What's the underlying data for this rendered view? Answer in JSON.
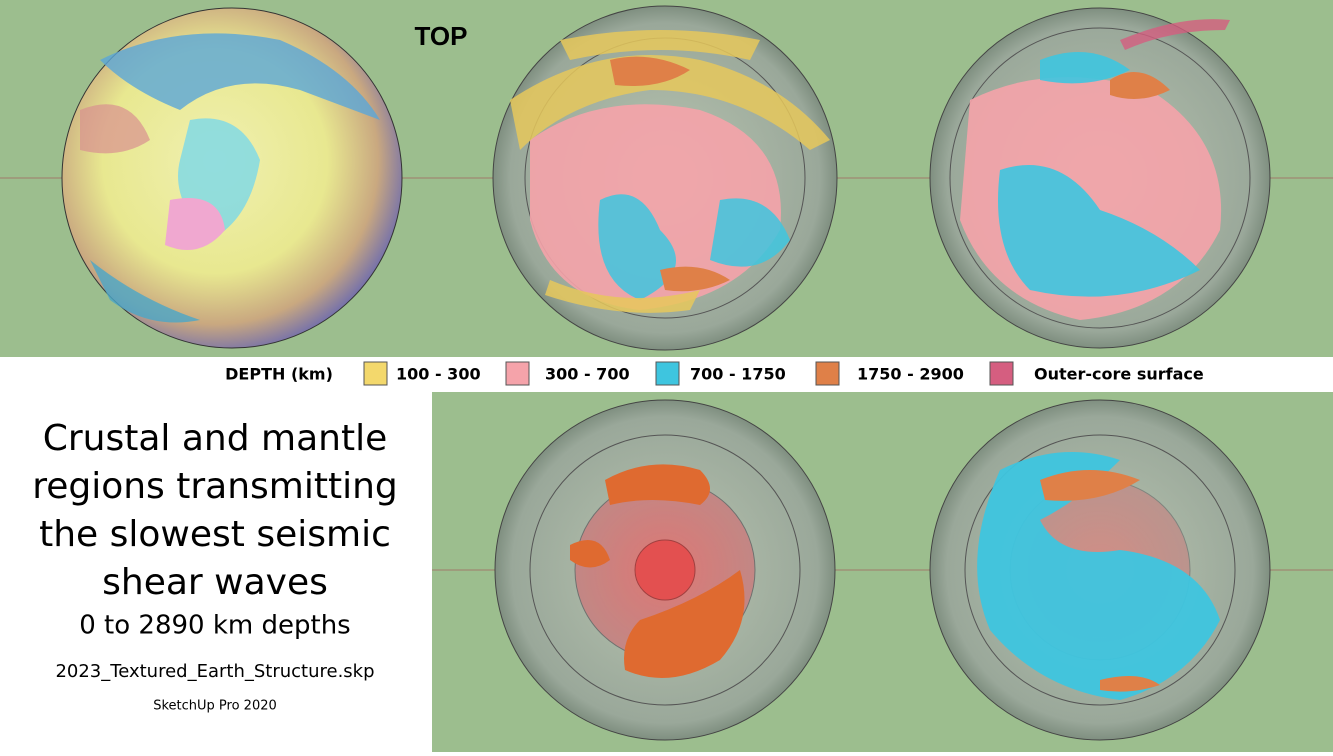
{
  "header": {
    "label": "TOP"
  },
  "legend": {
    "title": "DEPTH (km)",
    "items": [
      {
        "label": "100 - 300",
        "color": "#f3d86c"
      },
      {
        "label": "300 - 700",
        "color": "#f5a3aa"
      },
      {
        "label": "700 - 1750",
        "color": "#3ec5df"
      },
      {
        "label": "1750 - 2900",
        "color": "#df8048"
      },
      {
        "label": "Outer-core surface",
        "color": "#d55e80"
      }
    ]
  },
  "caption": {
    "title_lines": [
      "Crustal and mantle",
      "regions transmitting",
      "the slowest seismic",
      "shear waves"
    ],
    "subtitle": "0 to 2890 km depths",
    "file": "2023_Textured_Earth_Structure.skp",
    "software": "SketchUp Pro 2020"
  }
}
